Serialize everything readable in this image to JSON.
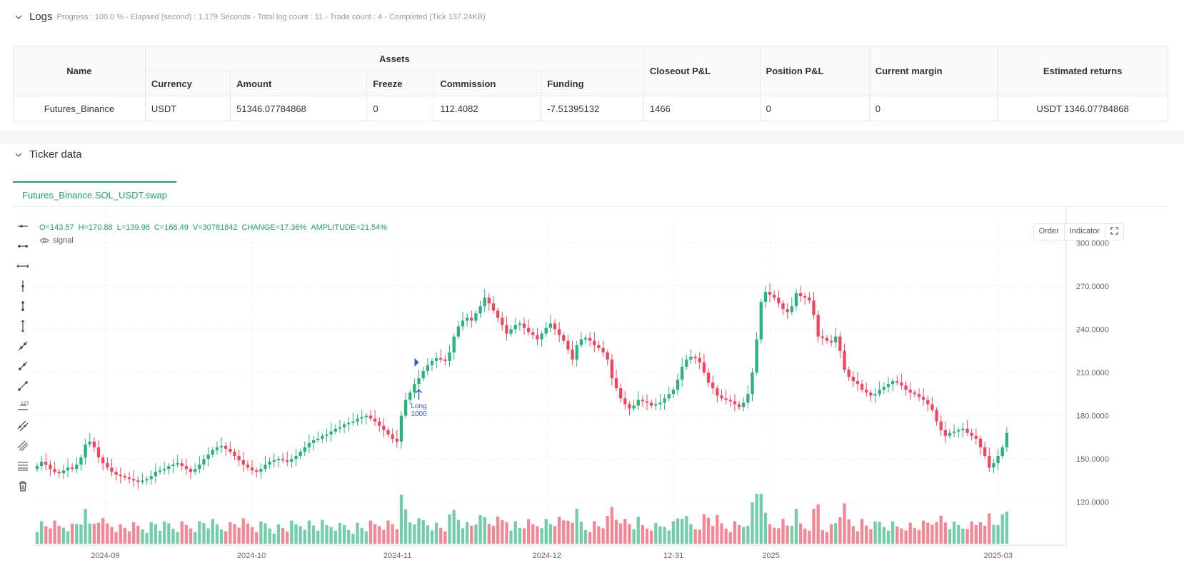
{
  "logs": {
    "title": "Logs",
    "meta": "Progress : 100.0 % - Elapsed (second) : 1.179  Seconds - Total log count : 11 - Trade count : 4 - Completed (Tick 137.24KB)",
    "headers": {
      "name": "Name",
      "assets": "Assets",
      "currency": "Currency",
      "amount": "Amount",
      "freeze": "Freeze",
      "commission": "Commission",
      "funding": "Funding",
      "closeout": "Closeout P&L",
      "position": "Position P&L",
      "margin": "Current margin",
      "returns": "Estimated returns"
    },
    "row": {
      "name": "Futures_Binance",
      "currency": "USDT",
      "amount": "51346.07784868",
      "freeze": "0",
      "commission": "112.4082",
      "funding": "-7.51395132",
      "closeout": "1466",
      "position": "0",
      "margin": "0",
      "returns": "USDT 1346.07784868"
    }
  },
  "ticker": {
    "title": "Ticker data",
    "tab": "Futures_Binance.SOL_USDT.swap",
    "ohlc": {
      "o": "O=143.57",
      "h": "H=170.88",
      "l": "L=139.96",
      "c": "C=168.49",
      "v": "V=30781842",
      "change": "CHANGE=17.36%",
      "amplitude": "AMPLITUDE=21.54%"
    },
    "signal_label": "signal",
    "buttons": {
      "order": "Order",
      "indicator": "Indicator"
    }
  },
  "tools": [
    "horizontal-ray-icon",
    "horizontal-segment-icon",
    "horizontal-line-icon",
    "vertical-line-icon",
    "vertical-segment-icon",
    "vertical-ray-icon",
    "trend-line-icon",
    "ray-line-icon",
    "extended-line-icon",
    "price-range-icon",
    "parallel-channel-icon",
    "pitchfork-icon",
    "fib-retracement-icon",
    "trash-icon"
  ],
  "colors": {
    "up": "#26b37c",
    "down": "#f0475c",
    "accent": "#19a06c",
    "marker": "#2f56d8"
  },
  "chart_data": {
    "type": "candlestick",
    "y_ticks": [
      "300.0000",
      "270.0000",
      "240.0000",
      "210.0000",
      "180.0000",
      "150.0000",
      "120.0000"
    ],
    "ylim": [
      98,
      322
    ],
    "x_ticks": [
      "2024-09",
      "2024-10",
      "2024-11",
      "2024-12",
      "12-31",
      "2025",
      "2025-03"
    ],
    "marker": {
      "label": "Long",
      "qty": "1000"
    },
    "closes": [
      145,
      148,
      146,
      143,
      141,
      140,
      142,
      144,
      143,
      146,
      151,
      160,
      162,
      158,
      151,
      147,
      144,
      141,
      139,
      138,
      137,
      136,
      135,
      134,
      135,
      136,
      138,
      141,
      142,
      143,
      145,
      146,
      147,
      145,
      143,
      141,
      143,
      146,
      150,
      153,
      156,
      158,
      159,
      157,
      155,
      152,
      149,
      146,
      144,
      142,
      141,
      143,
      146,
      148,
      149,
      150,
      149,
      148,
      150,
      152,
      155,
      158,
      161,
      163,
      164,
      166,
      167,
      169,
      171,
      172,
      174,
      175,
      176,
      178,
      179,
      180,
      178,
      176,
      173,
      170,
      167,
      164,
      162,
      180,
      191,
      196,
      202,
      206,
      211,
      215,
      218,
      220,
      219,
      218,
      224,
      235,
      242,
      246,
      248,
      246,
      251,
      256,
      262,
      258,
      253,
      248,
      243,
      237,
      240,
      243,
      244,
      241,
      238,
      236,
      233,
      237,
      241,
      244,
      240,
      236,
      232,
      226,
      219,
      229,
      233,
      234,
      232,
      229,
      227,
      224,
      219,
      206,
      199,
      192,
      188,
      185,
      187,
      191,
      190,
      189,
      187,
      188,
      189,
      192,
      195,
      198,
      205,
      214,
      219,
      221,
      220,
      217,
      210,
      203,
      199,
      194,
      192,
      191,
      190,
      188,
      186,
      189,
      195,
      210,
      233,
      259,
      266,
      264,
      262,
      258,
      254,
      252,
      256,
      265,
      263,
      262,
      260,
      250,
      235,
      234,
      232,
      231,
      235,
      225,
      212,
      207,
      204,
      202,
      198,
      196,
      194,
      195,
      198,
      200,
      202,
      204,
      203,
      201,
      198,
      196,
      195,
      193,
      191,
      188,
      184,
      176,
      170,
      166,
      168,
      169,
      170,
      171,
      168,
      166,
      164,
      158,
      152,
      144,
      147,
      152,
      158,
      168
    ]
  }
}
